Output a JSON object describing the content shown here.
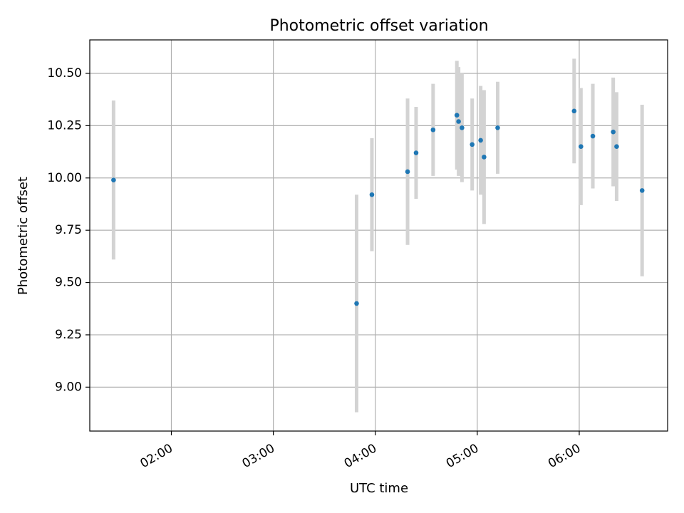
{
  "chart_data": {
    "type": "scatter",
    "title": "Photometric offset variation",
    "xlabel": "UTC time",
    "ylabel": "Photometric offset",
    "x_tick_labels": [
      "02:00",
      "03:00",
      "04:00",
      "05:00",
      "06:00"
    ],
    "x_tick_values": [
      2.0,
      3.0,
      4.0,
      5.0,
      6.0
    ],
    "y_tick_labels": [
      "9.00",
      "9.25",
      "9.50",
      "9.75",
      "10.00",
      "10.25",
      "10.50"
    ],
    "y_tick_values": [
      9.0,
      9.25,
      9.5,
      9.75,
      10.0,
      10.25,
      10.5
    ],
    "xlim": [
      "01:12",
      "06:52"
    ],
    "ylim": [
      8.79,
      10.66
    ],
    "grid": true,
    "marker_color": "#1f77b4",
    "errorbar_color": "#d3d3d3",
    "points": [
      {
        "t": "01:26",
        "y": 9.99,
        "err": 0.38
      },
      {
        "t": "03:49",
        "y": 9.4,
        "err": 0.52
      },
      {
        "t": "03:58",
        "y": 9.92,
        "err": 0.27
      },
      {
        "t": "04:19",
        "y": 10.03,
        "err": 0.35
      },
      {
        "t": "04:24",
        "y": 10.12,
        "err": 0.22
      },
      {
        "t": "04:34",
        "y": 10.23,
        "err": 0.22
      },
      {
        "t": "04:48",
        "y": 10.3,
        "err": 0.26
      },
      {
        "t": "04:49",
        "y": 10.27,
        "err": 0.26
      },
      {
        "t": "04:51",
        "y": 10.24,
        "err": 0.26
      },
      {
        "t": "04:57",
        "y": 10.16,
        "err": 0.22
      },
      {
        "t": "05:02",
        "y": 10.18,
        "err": 0.26
      },
      {
        "t": "05:04",
        "y": 10.1,
        "err": 0.32
      },
      {
        "t": "05:12",
        "y": 10.24,
        "err": 0.22
      },
      {
        "t": "05:57",
        "y": 10.32,
        "err": 0.25
      },
      {
        "t": "06:01",
        "y": 10.15,
        "err": 0.28
      },
      {
        "t": "06:08",
        "y": 10.2,
        "err": 0.25
      },
      {
        "t": "06:20",
        "y": 10.22,
        "err": 0.26
      },
      {
        "t": "06:22",
        "y": 10.15,
        "err": 0.26
      },
      {
        "t": "06:37",
        "y": 9.94,
        "err": 0.41
      }
    ]
  }
}
